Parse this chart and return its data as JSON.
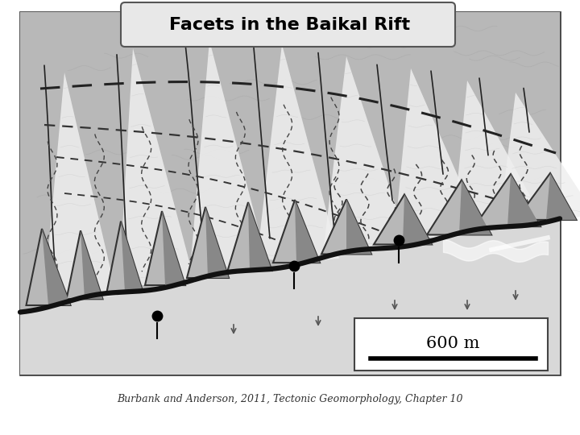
{
  "title": "Facets in the Baikal Rift",
  "caption": "Burbank and Anderson, 2011, Tectonic Geomorphology, Chapter 10",
  "scale_label": "600 m",
  "fig_bg": "#ffffff",
  "frame_bg": "#c8c8c8",
  "mountain_bg": "#c0c0c0",
  "fan_white": "#f0f0f0",
  "facet_light": "#b8b8b8",
  "facet_dark": "#888888",
  "fault_color": "#111111",
  "alluvial_bg": "#d0d0d0",
  "title_box_bg": "#e0e0e0",
  "scale_bar_color": "#111111",
  "dot_color": "#111111"
}
